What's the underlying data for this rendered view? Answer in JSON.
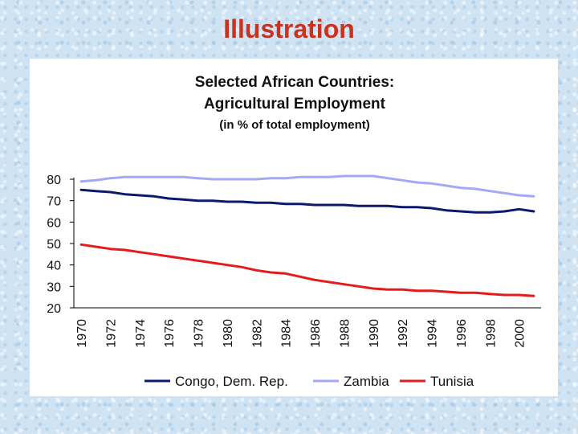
{
  "slide": {
    "title": "Illustration"
  },
  "chart_data": {
    "type": "line",
    "title": "Selected African Countries:",
    "subtitle": "Agricultural Employment",
    "subtitle2": "(in % of total employment)",
    "xlabel": "",
    "ylabel": "",
    "ylim": [
      20,
      80
    ],
    "yticks": [
      20,
      30,
      40,
      50,
      60,
      70,
      80
    ],
    "x": [
      1970,
      1971,
      1972,
      1973,
      1974,
      1975,
      1976,
      1977,
      1978,
      1979,
      1980,
      1981,
      1982,
      1983,
      1984,
      1985,
      1986,
      1987,
      1988,
      1989,
      1990,
      1991,
      1992,
      1993,
      1994,
      1995,
      1996,
      1997,
      1998,
      1999,
      2000,
      2001
    ],
    "xtick_labels": [
      "1970",
      "1972",
      "1974",
      "1976",
      "1978",
      "1980",
      "1982",
      "1984",
      "1986",
      "1988",
      "1990",
      "1992",
      "1994",
      "1996",
      "1998",
      "2000"
    ],
    "series": [
      {
        "name": "Congo, Dem. Rep.",
        "color": "#0b1a6e",
        "values": [
          75,
          74.5,
          74,
          73,
          72.5,
          72,
          71,
          70.5,
          70,
          70,
          69.5,
          69.5,
          69,
          69,
          68.5,
          68.5,
          68,
          68,
          68,
          67.5,
          67.5,
          67.5,
          67,
          67,
          66.5,
          65.5,
          65,
          64.5,
          64.5,
          65,
          66,
          65
        ]
      },
      {
        "name": "Zambia",
        "color": "#a3a9f3",
        "values": [
          79,
          79.5,
          80.5,
          81,
          81,
          81,
          81,
          81,
          80.5,
          80,
          80,
          80,
          80,
          80.5,
          80.5,
          81,
          81,
          81,
          81.5,
          81.5,
          81.5,
          80.5,
          79.5,
          78.5,
          78,
          77,
          76,
          75.5,
          74.5,
          73.5,
          72.5,
          72
        ]
      },
      {
        "name": "Tunisia",
        "color": "#e51b1b",
        "values": [
          49.5,
          48.5,
          47.5,
          47,
          46,
          45,
          44,
          43,
          42,
          41,
          40,
          39,
          37.5,
          36.5,
          36,
          34.5,
          33,
          32,
          31,
          30,
          29,
          28.5,
          28.5,
          28,
          28,
          27.5,
          27,
          27,
          26.5,
          26,
          26,
          25.5
        ]
      }
    ],
    "legend": "bottom"
  }
}
